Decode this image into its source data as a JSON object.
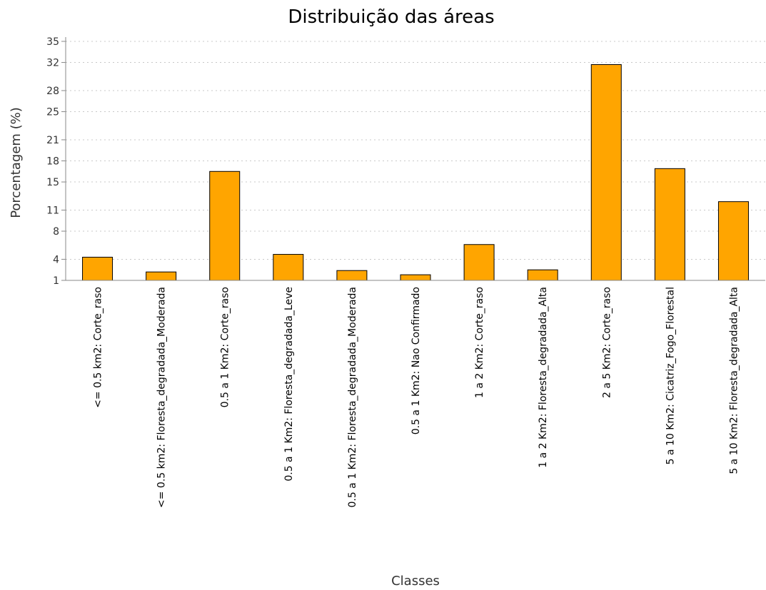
{
  "chart_data": {
    "type": "bar",
    "title": "Distribuição das áreas",
    "xlabel": "Classes",
    "ylabel": "Porcentagem (%)",
    "ylim": [
      1,
      35
    ],
    "yticks": [
      1,
      4,
      8,
      11,
      15,
      18,
      21,
      25,
      28,
      32,
      35
    ],
    "grid": true,
    "categories": [
      "<= 0.5 km2: Corte_raso",
      "<= 0.5 km2: Floresta_degradada_Moderada",
      "0.5 a 1 Km2: Corte_raso",
      "0.5 a 1 Km2: Floresta_degradada_Leve",
      "0.5 a 1 Km2: Floresta_degradada_Moderada",
      "0.5 a 1 Km2: Nao Confirmado",
      "1 a 2 Km2: Corte_raso",
      "1 a 2 Km2: Floresta_degradada_Alta",
      "2 a 5 Km2: Corte_raso",
      "5 a 10 Km2: Cicatriz_Fogo_Florestal",
      "5 a 10 Km2: Floresta_degradada_Alta"
    ],
    "values": [
      4.3,
      2.2,
      16.5,
      4.7,
      2.4,
      1.8,
      6.1,
      2.5,
      31.7,
      16.9,
      12.2
    ],
    "bar_color": "#FFA500",
    "bar_stroke": "#000000"
  }
}
